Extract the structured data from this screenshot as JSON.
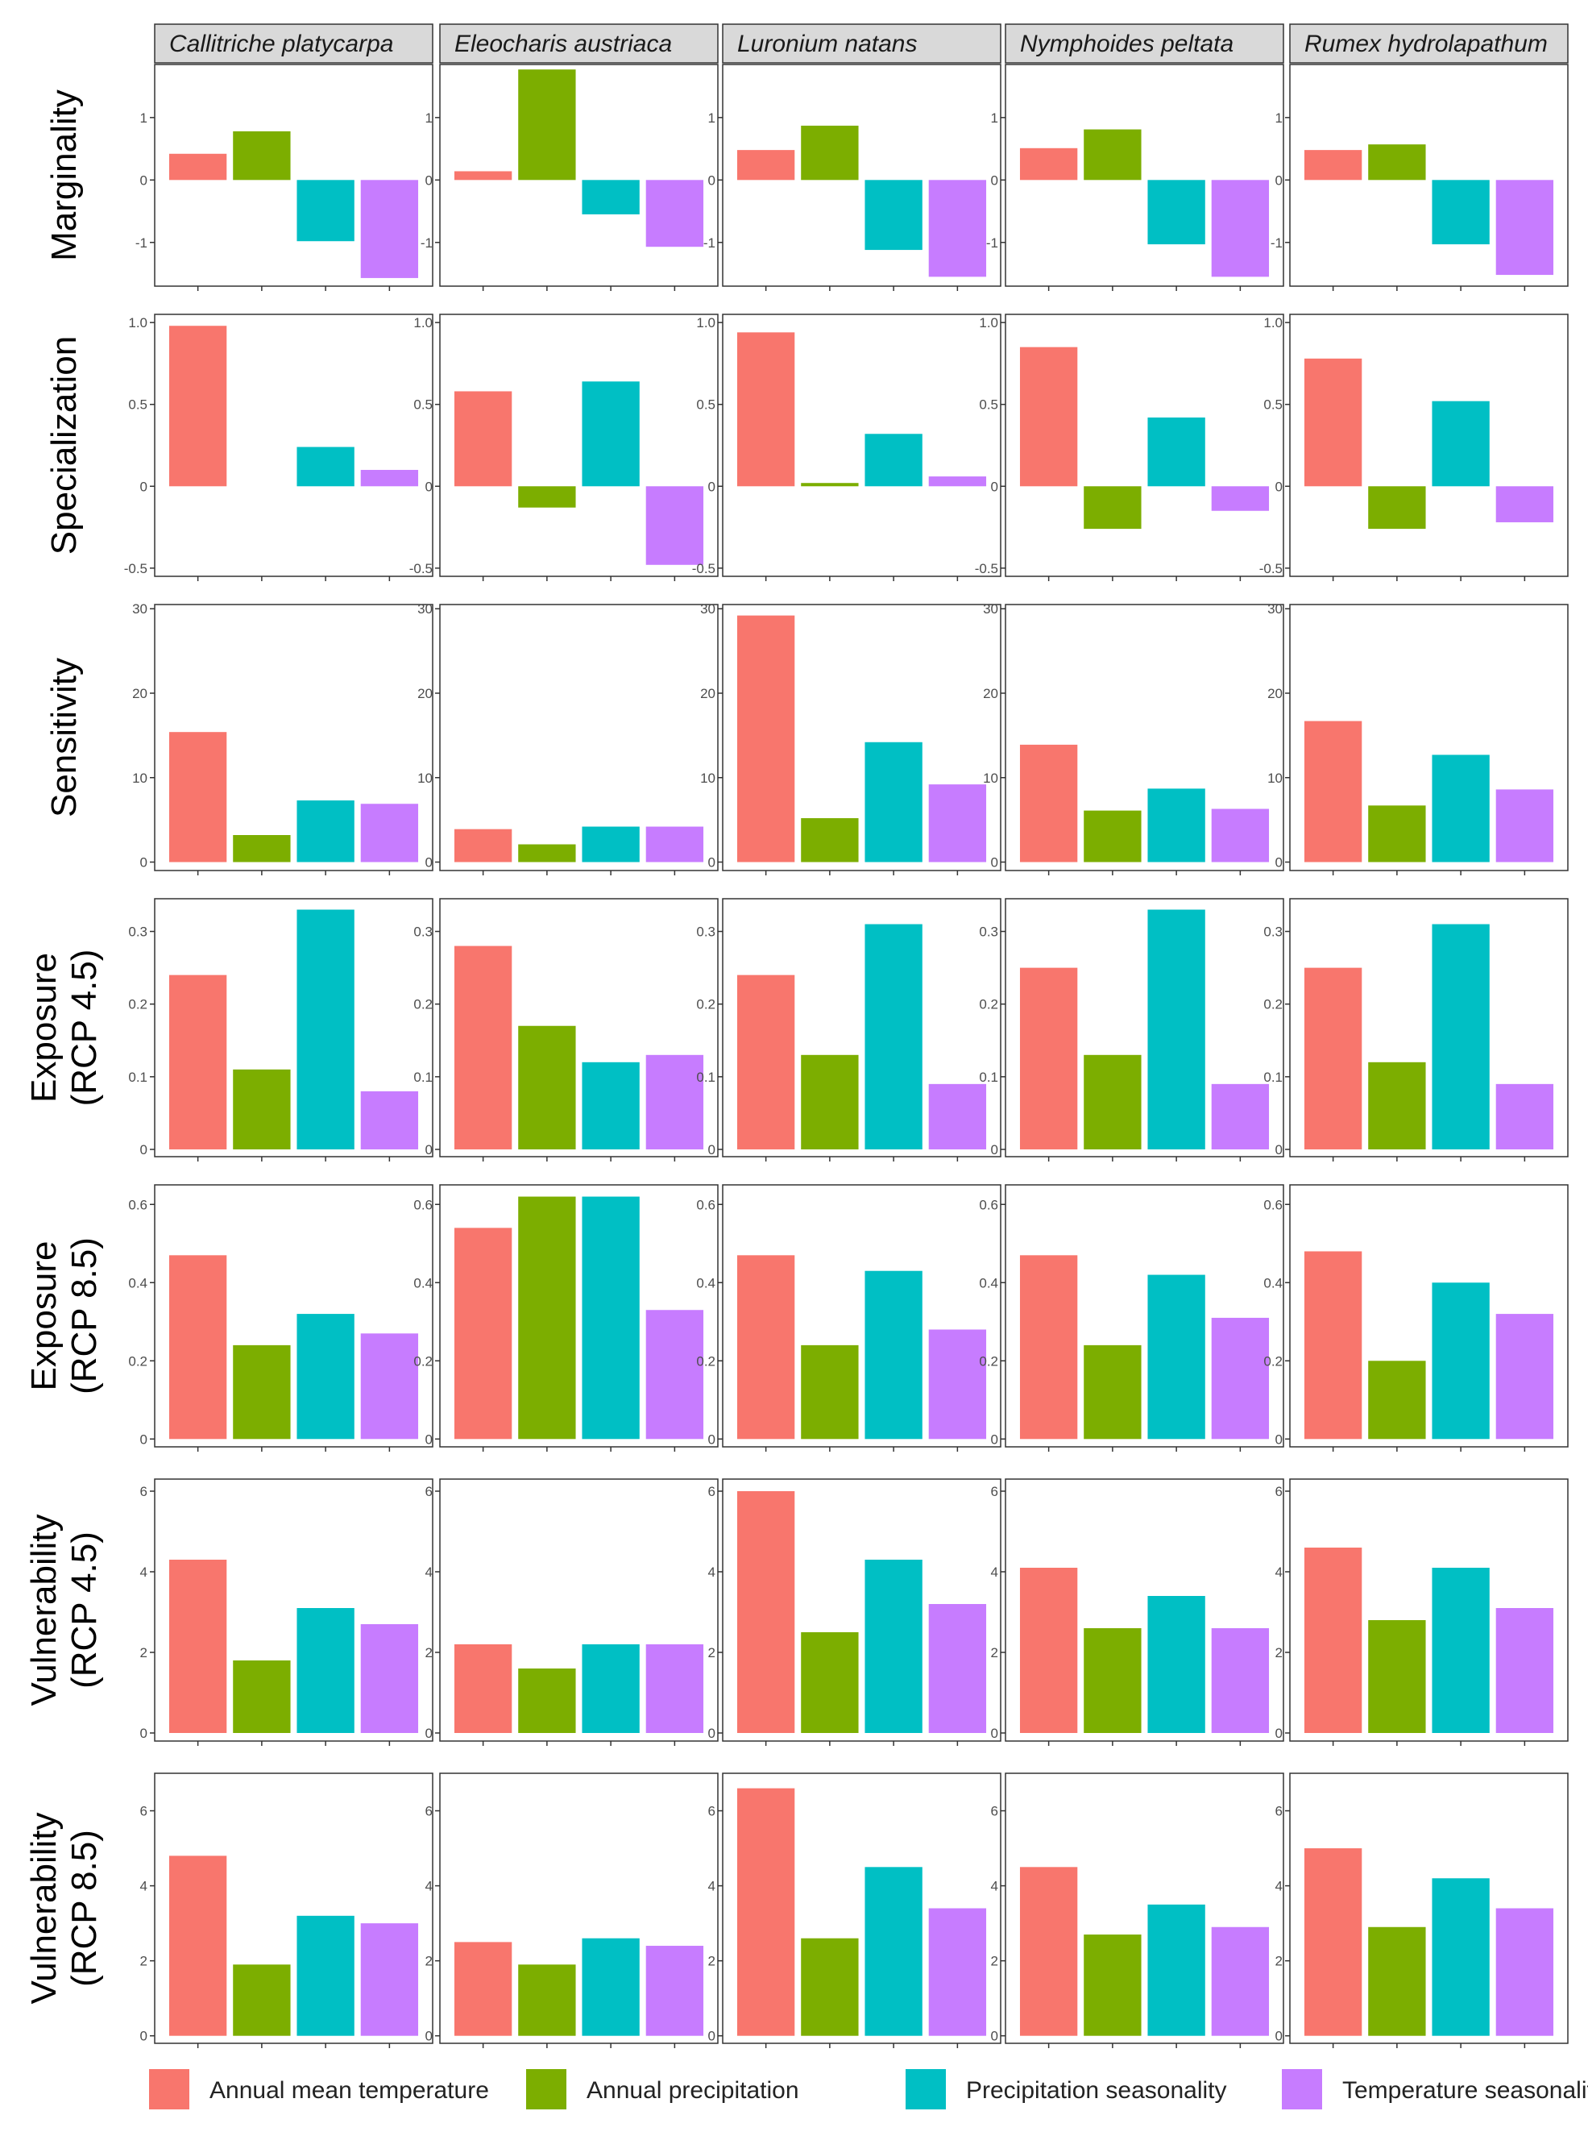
{
  "chart_data": {
    "type": "bar",
    "facets": [
      "Callitriche platycarpa",
      "Eleocharis austriaca",
      "Luronium natans",
      "Nymphoides peltata",
      "Rumex hydrolapathum"
    ],
    "categories": [
      "Annual mean temperature",
      "Annual precipitation",
      "Precipitation seasonality",
      "Temperature seasonality"
    ],
    "colors": [
      "#F8766D",
      "#7CAE00",
      "#00BFC4",
      "#C77CFF"
    ],
    "legend": {
      "position": "bottom",
      "entries": [
        "Annual mean temperature",
        "Annual precipitation",
        "Precipitation seasonality",
        "Temperature seasonality"
      ]
    },
    "rows": [
      {
        "label": [
          "Marginality"
        ],
        "ylim": [
          -1.7,
          1.85
        ],
        "yticks": [
          -1,
          0,
          1
        ],
        "ytick_labels": [
          "-1",
          "0",
          "1"
        ],
        "values": [
          [
            0.42,
            0.78,
            -0.98,
            -1.57
          ],
          [
            0.14,
            1.77,
            -0.55,
            -1.07
          ],
          [
            0.48,
            0.87,
            -1.12,
            -1.55
          ],
          [
            0.51,
            0.81,
            -1.03,
            -1.55
          ],
          [
            0.48,
            0.57,
            -1.03,
            -1.52
          ]
        ]
      },
      {
        "label": [
          "Specialization"
        ],
        "ylim": [
          -0.55,
          1.05
        ],
        "yticks": [
          -0.5,
          0,
          0.5,
          1.0
        ],
        "ytick_labels": [
          "-0.5",
          "0",
          "0.5",
          "1.0"
        ],
        "values": [
          [
            0.98,
            0.0,
            0.24,
            0.1
          ],
          [
            0.58,
            -0.13,
            0.64,
            -0.48
          ],
          [
            0.94,
            0.02,
            0.32,
            0.06
          ],
          [
            0.85,
            -0.26,
            0.42,
            -0.15
          ],
          [
            0.78,
            -0.26,
            0.52,
            -0.22
          ]
        ]
      },
      {
        "label": [
          "Sensitivity"
        ],
        "ylim": [
          -1.0,
          30.5
        ],
        "yticks": [
          0,
          10,
          20,
          30
        ],
        "ytick_labels": [
          "0",
          "10",
          "20",
          "30"
        ],
        "values": [
          [
            15.4,
            3.2,
            7.3,
            6.9
          ],
          [
            3.9,
            2.1,
            4.2,
            4.2
          ],
          [
            29.2,
            5.2,
            14.2,
            9.2
          ],
          [
            13.9,
            6.1,
            8.7,
            6.3
          ],
          [
            16.7,
            6.7,
            12.7,
            8.6
          ]
        ]
      },
      {
        "label": [
          "Exposure",
          "(RCP 4.5)"
        ],
        "ylim": [
          -0.01,
          0.345
        ],
        "yticks": [
          0,
          0.1,
          0.2,
          0.3
        ],
        "ytick_labels": [
          "0",
          "0.1",
          "0.2",
          "0.3"
        ],
        "values": [
          [
            0.24,
            0.11,
            0.33,
            0.08
          ],
          [
            0.28,
            0.17,
            0.12,
            0.13
          ],
          [
            0.24,
            0.13,
            0.31,
            0.09
          ],
          [
            0.25,
            0.13,
            0.33,
            0.09
          ],
          [
            0.25,
            0.12,
            0.31,
            0.09
          ]
        ]
      },
      {
        "label": [
          "Exposure",
          "(RCP 8.5)"
        ],
        "ylim": [
          -0.02,
          0.65
        ],
        "yticks": [
          0,
          0.2,
          0.4,
          0.6
        ],
        "ytick_labels": [
          "0",
          "0.2",
          "0.4",
          "0.6"
        ],
        "values": [
          [
            0.47,
            0.24,
            0.32,
            0.27
          ],
          [
            0.54,
            0.62,
            0.62,
            0.33
          ],
          [
            0.47,
            0.24,
            0.43,
            0.28
          ],
          [
            0.47,
            0.24,
            0.42,
            0.31
          ],
          [
            0.48,
            0.2,
            0.4,
            0.32
          ]
        ]
      },
      {
        "label": [
          "Vulnerability",
          "(RCP 4.5)"
        ],
        "ylim": [
          -0.2,
          6.3
        ],
        "yticks": [
          0,
          2,
          4,
          6
        ],
        "ytick_labels": [
          "0",
          "2",
          "4",
          "6"
        ],
        "values": [
          [
            4.3,
            1.8,
            3.1,
            2.7
          ],
          [
            2.2,
            1.6,
            2.2,
            2.2
          ],
          [
            6.0,
            2.5,
            4.3,
            3.2
          ],
          [
            4.1,
            2.6,
            3.4,
            2.6
          ],
          [
            4.6,
            2.8,
            4.1,
            3.1
          ]
        ]
      },
      {
        "label": [
          "Vulnerability",
          "(RCP 8.5)"
        ],
        "ylim": [
          -0.2,
          7.0
        ],
        "yticks": [
          0,
          2,
          4,
          6
        ],
        "ytick_labels": [
          "0",
          "2",
          "4",
          "6"
        ],
        "values": [
          [
            4.8,
            1.9,
            3.2,
            3.0
          ],
          [
            2.5,
            1.9,
            2.6,
            2.4
          ],
          [
            6.6,
            2.6,
            4.5,
            3.4
          ],
          [
            4.5,
            2.7,
            3.5,
            2.9
          ],
          [
            5.0,
            2.9,
            4.2,
            3.4
          ]
        ]
      }
    ]
  }
}
